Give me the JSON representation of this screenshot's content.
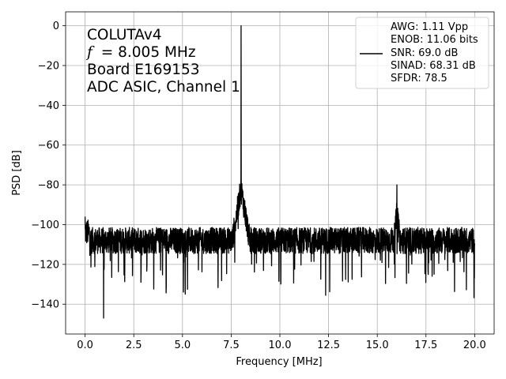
{
  "chart_data": {
    "type": "line",
    "title": "",
    "xlabel": "Frequency [MHz]",
    "ylabel": "PSD [dB]",
    "xlim": [
      -1.0,
      21.0
    ],
    "ylim": [
      -155,
      7
    ],
    "xticks": [
      0.0,
      2.5,
      5.0,
      7.5,
      10.0,
      12.5,
      15.0,
      17.5,
      20.0
    ],
    "xtick_labels": [
      "0.0",
      "2.5",
      "5.0",
      "7.5",
      "10.0",
      "12.5",
      "15.0",
      "17.5",
      "20.0"
    ],
    "yticks": [
      0,
      -20,
      -40,
      -60,
      -80,
      -100,
      -120,
      -140
    ],
    "ytick_labels": [
      "0",
      "−20",
      "−40",
      "−60",
      "−80",
      "−100",
      "−120",
      "−140"
    ],
    "grid": true,
    "legend_position": "top-right",
    "annotation_lines": [
      "COLUTAv4",
      "= 8.005 MHz",
      "Board E169153",
      "ADC ASIC, Channel  1"
    ],
    "annotation_symbol": "f",
    "legend_entries": [
      "AWG: 1.11 Vpp",
      "ENOB: 11.06 bits",
      "SNR: 69.0 dB",
      "SINAD: 68.31 dB",
      "SFDR: 78.5"
    ],
    "series": [
      {
        "color": "#000000",
        "noise_floor_db": -108,
        "noise_band_db": [
          -122,
          -98
        ],
        "x_range": [
          0.0,
          20.0
        ],
        "peaks": [
          {
            "x": 8.005,
            "y": 0
          },
          {
            "x": 16.01,
            "y": -80
          },
          {
            "x": 0.0,
            "y": -96
          },
          {
            "x": 0.95,
            "y": -147
          }
        ]
      }
    ]
  }
}
